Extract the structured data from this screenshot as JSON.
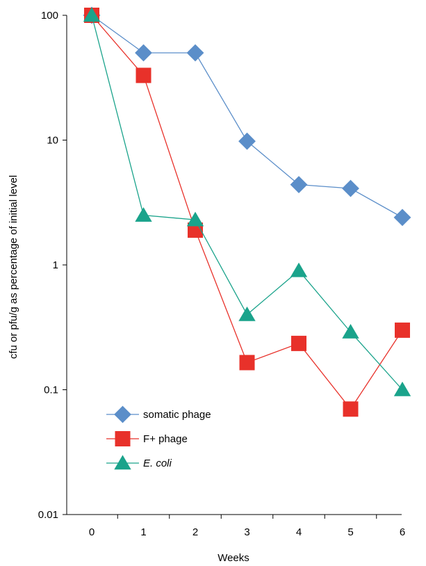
{
  "chart_data": {
    "type": "line",
    "title": "",
    "xlabel": "Weeks",
    "ylabel": "cfu or pfu/g as percentage of initial level",
    "yscale": "log",
    "ylim": [
      0.01,
      100
    ],
    "y_ticks": [
      "0.01",
      "0.1",
      "1",
      "10",
      "100"
    ],
    "x": [
      0,
      1,
      2,
      3,
      4,
      5,
      6
    ],
    "x_ticks": [
      "0",
      "1",
      "2",
      "3",
      "4",
      "5",
      "6"
    ],
    "legend_position": "bottom-left",
    "grid": false,
    "series": [
      {
        "name": "somatic phage",
        "italic": false,
        "color": "#5b8ec9",
        "marker": "diamond",
        "values": [
          100,
          50,
          50,
          9.8,
          4.4,
          4.1,
          2.4
        ]
      },
      {
        "name": "F+ phage",
        "italic": false,
        "color": "#e8312a",
        "marker": "square",
        "values": [
          100,
          33,
          1.9,
          0.165,
          0.235,
          0.07,
          0.3
        ]
      },
      {
        "name": "E. coli",
        "italic": true,
        "color": "#1aa38b",
        "marker": "triangle",
        "values": [
          100,
          2.5,
          2.3,
          0.4,
          0.9,
          0.29,
          0.1
        ]
      }
    ]
  }
}
